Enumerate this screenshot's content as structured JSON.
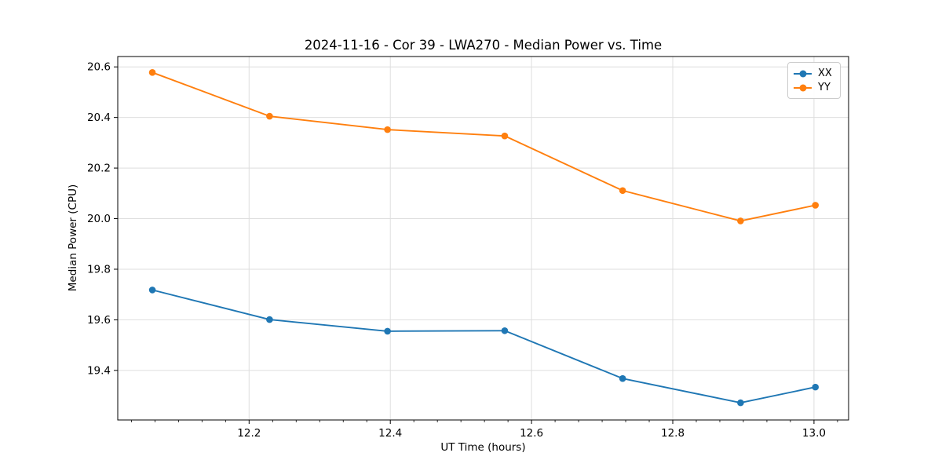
{
  "figure": {
    "title": "2024-11-16 - Cor 39 - LWA270 - Median Power vs. Time",
    "xlabel": "UT Time (hours)",
    "ylabel": "Median Power (CPU)"
  },
  "legend": {
    "position": "upper right",
    "items": [
      {
        "label": "XX",
        "color": "#1f77b4"
      },
      {
        "label": "YY",
        "color": "#ff7f0e"
      }
    ]
  },
  "chart_data": {
    "type": "line",
    "title": "2024-11-16 - Cor 39 - LWA270 - Median Power vs. Time",
    "xlabel": "UT Time (hours)",
    "ylabel": "Median Power (CPU)",
    "x": [
      12.063,
      12.229,
      12.396,
      12.562,
      12.729,
      12.896,
      13.002
    ],
    "series": [
      {
        "name": "XX",
        "color": "#1f77b4",
        "values": [
          19.718,
          19.601,
          19.555,
          19.557,
          19.368,
          19.272,
          19.334
        ]
      },
      {
        "name": "YY",
        "color": "#ff7f0e",
        "values": [
          20.578,
          20.405,
          20.352,
          20.327,
          20.111,
          19.991,
          20.053
        ]
      }
    ],
    "xlim": [
      12.014,
      13.049
    ],
    "ylim": [
      19.204,
      20.641
    ],
    "xticks": [
      12.2,
      12.4,
      12.6,
      12.8,
      13.0
    ],
    "xtick_labels": [
      "12.2",
      "12.4",
      "12.6",
      "12.8",
      "13.0"
    ],
    "yticks": [
      19.4,
      19.6,
      19.8,
      20.0,
      20.2,
      20.4,
      20.6
    ],
    "ytick_labels": [
      "19.4",
      "19.6",
      "19.8",
      "20.0",
      "20.2",
      "20.4",
      "20.6"
    ],
    "x_minor_step": 0.0333333,
    "grid": true,
    "grid_color": "#dedede",
    "spine_color": "#000000",
    "legend_position": "upper right"
  }
}
